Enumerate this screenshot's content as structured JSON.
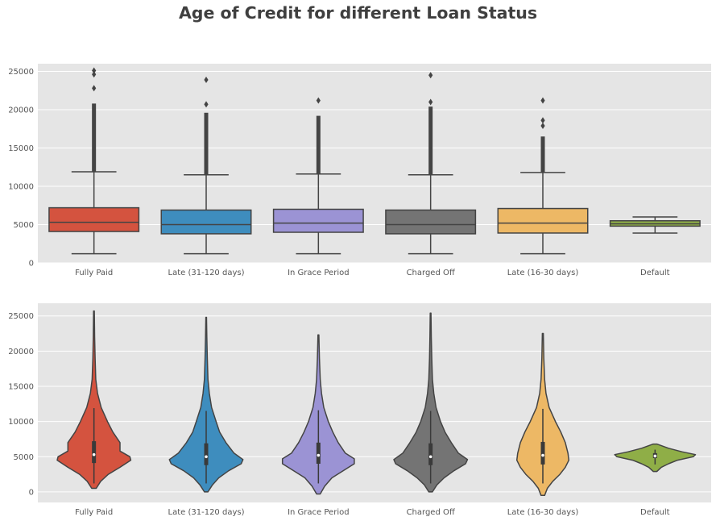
{
  "title": "Age of Credit for different Loan Status",
  "colors": {
    "panel_bg": "#e5e5e5",
    "grid": "#ffffff",
    "edge": "#444444",
    "tick_text": "#555555"
  },
  "chart_data": [
    {
      "type": "box",
      "categories": [
        "Fully Paid",
        "Late (31-120 days)",
        "In Grace Period",
        "Charged Off",
        "Late (16-30 days)",
        "Default"
      ],
      "colors": [
        "#d4533f",
        "#3e8dbe",
        "#9b93d4",
        "#747474",
        "#edb865",
        "#8fae47"
      ],
      "ylim": [
        0,
        26000
      ],
      "yticks": [
        0,
        5000,
        10000,
        15000,
        20000,
        25000
      ],
      "grid": true,
      "boxes": [
        {
          "whisker_low": 1200,
          "q1": 4100,
          "median": 5300,
          "q3": 7200,
          "whisker_high": 11900,
          "outlier_min": 11900,
          "outlier_max": 20800,
          "outliers": [
            22800,
            24600,
            25100
          ]
        },
        {
          "whisker_low": 1200,
          "q1": 3800,
          "median": 5000,
          "q3": 6900,
          "whisker_high": 11500,
          "outlier_min": 11500,
          "outlier_max": 19600,
          "outliers": [
            20700,
            23900
          ]
        },
        {
          "whisker_low": 1200,
          "q1": 4000,
          "median": 5200,
          "q3": 7000,
          "whisker_high": 11600,
          "outlier_min": 11600,
          "outlier_max": 19200,
          "outliers": [
            21200
          ]
        },
        {
          "whisker_low": 1200,
          "q1": 3800,
          "median": 5000,
          "q3": 6900,
          "whisker_high": 11500,
          "outlier_min": 11500,
          "outlier_max": 20400,
          "outliers": [
            21000,
            24500
          ]
        },
        {
          "whisker_low": 1200,
          "q1": 3900,
          "median": 5200,
          "q3": 7100,
          "whisker_high": 11800,
          "outlier_min": 11800,
          "outlier_max": 16500,
          "outliers": [
            17900,
            18600,
            21200
          ]
        },
        {
          "whisker_low": 3900,
          "q1": 4800,
          "median": 5100,
          "q3": 5500,
          "whisker_high": 6000,
          "outlier_min": null,
          "outlier_max": null,
          "outliers": []
        }
      ]
    },
    {
      "type": "violin",
      "categories": [
        "Fully Paid",
        "Late (31-120 days)",
        "In Grace Period",
        "Charged Off",
        "Late (16-30 days)",
        "Default"
      ],
      "colors": [
        "#d4533f",
        "#3e8dbe",
        "#9b93d4",
        "#747474",
        "#edb865",
        "#8fae47"
      ],
      "ylim": [
        -1500,
        26800
      ],
      "yticks": [
        0,
        5000,
        10000,
        15000,
        20000,
        25000
      ],
      "grid": true,
      "violins": [
        {
          "profile": [
            [
              500,
              0.05
            ],
            [
              1500,
              0.15
            ],
            [
              2500,
              0.32
            ],
            [
              3500,
              0.58
            ],
            [
              4500,
              0.82
            ],
            [
              5000,
              0.8
            ],
            [
              5800,
              0.58
            ],
            [
              7000,
              0.58
            ],
            [
              8500,
              0.42
            ],
            [
              10000,
              0.3
            ],
            [
              12000,
              0.16
            ],
            [
              14000,
              0.08
            ],
            [
              16000,
              0.04
            ],
            [
              19000,
              0.025
            ],
            [
              22000,
              0.015
            ],
            [
              25700,
              0.008
            ]
          ],
          "q1": 4100,
          "median": 5300,
          "q3": 7200,
          "whisker_low": 1200,
          "whisker_high": 11900
        },
        {
          "profile": [
            [
              0,
              0.04
            ],
            [
              1000,
              0.14
            ],
            [
              2000,
              0.28
            ],
            [
              3000,
              0.5
            ],
            [
              4000,
              0.78
            ],
            [
              4600,
              0.82
            ],
            [
              5500,
              0.62
            ],
            [
              7000,
              0.44
            ],
            [
              8500,
              0.3
            ],
            [
              10000,
              0.22
            ],
            [
              12000,
              0.12
            ],
            [
              14000,
              0.07
            ],
            [
              16000,
              0.04
            ],
            [
              19000,
              0.025
            ],
            [
              22000,
              0.015
            ],
            [
              24800,
              0.008
            ]
          ],
          "q1": 3800,
          "median": 5000,
          "q3": 6900,
          "whisker_low": 1200,
          "whisker_high": 11500
        },
        {
          "profile": [
            [
              -300,
              0.04
            ],
            [
              800,
              0.14
            ],
            [
              2000,
              0.3
            ],
            [
              3000,
              0.55
            ],
            [
              4000,
              0.8
            ],
            [
              4700,
              0.8
            ],
            [
              5500,
              0.6
            ],
            [
              7000,
              0.44
            ],
            [
              8500,
              0.32
            ],
            [
              10000,
              0.22
            ],
            [
              12000,
              0.12
            ],
            [
              14000,
              0.07
            ],
            [
              16000,
              0.04
            ],
            [
              19000,
              0.022
            ],
            [
              22300,
              0.01
            ]
          ],
          "q1": 4000,
          "median": 5200,
          "q3": 7000,
          "whisker_low": 1200,
          "whisker_high": 11600
        },
        {
          "profile": [
            [
              0,
              0.04
            ],
            [
              1000,
              0.14
            ],
            [
              2000,
              0.3
            ],
            [
              3000,
              0.52
            ],
            [
              4000,
              0.78
            ],
            [
              4600,
              0.82
            ],
            [
              5500,
              0.62
            ],
            [
              7000,
              0.46
            ],
            [
              8500,
              0.32
            ],
            [
              10000,
              0.22
            ],
            [
              12000,
              0.12
            ],
            [
              14000,
              0.07
            ],
            [
              16000,
              0.04
            ],
            [
              19000,
              0.025
            ],
            [
              22000,
              0.015
            ],
            [
              25400,
              0.008
            ]
          ],
          "q1": 3800,
          "median": 5000,
          "q3": 6900,
          "whisker_low": 1200,
          "whisker_high": 11500
        },
        {
          "profile": [
            [
              -500,
              0.04
            ],
            [
              500,
              0.1
            ],
            [
              1500,
              0.22
            ],
            [
              2500,
              0.38
            ],
            [
              3500,
              0.5
            ],
            [
              4500,
              0.58
            ],
            [
              5500,
              0.56
            ],
            [
              7000,
              0.5
            ],
            [
              8500,
              0.4
            ],
            [
              10000,
              0.28
            ],
            [
              12000,
              0.14
            ],
            [
              14000,
              0.07
            ],
            [
              16000,
              0.04
            ],
            [
              19000,
              0.022
            ],
            [
              22500,
              0.01
            ]
          ],
          "q1": 3900,
          "median": 5200,
          "q3": 7100,
          "whisker_low": 1200,
          "whisker_high": 11800
        },
        {
          "profile": [
            [
              2900,
              0.04
            ],
            [
              3500,
              0.14
            ],
            [
              4000,
              0.3
            ],
            [
              4500,
              0.5
            ],
            [
              5000,
              0.85
            ],
            [
              5300,
              0.9
            ],
            [
              5700,
              0.6
            ],
            [
              6200,
              0.3
            ],
            [
              6800,
              0.04
            ]
          ],
          "q1": 4800,
          "median": 5100,
          "q3": 5500,
          "whisker_low": 3900,
          "whisker_high": 6000
        }
      ]
    }
  ]
}
